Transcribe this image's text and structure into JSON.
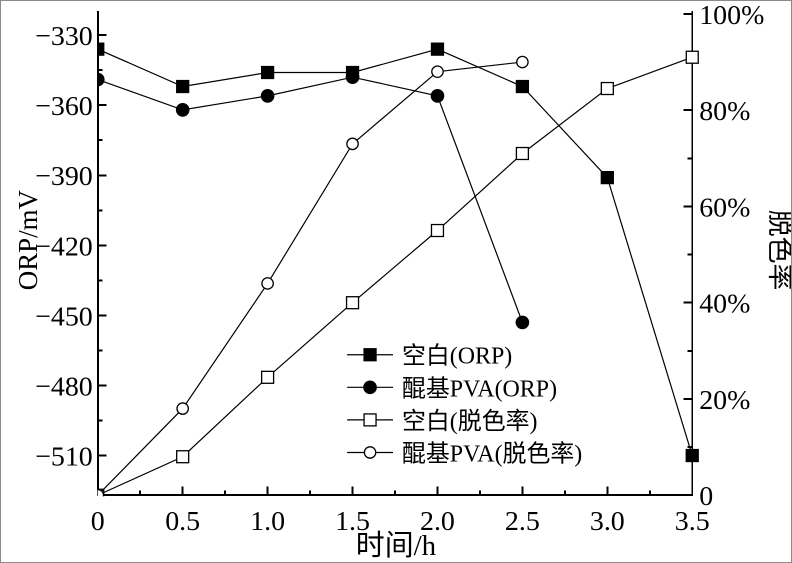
{
  "figure": {
    "background": "#ffffff",
    "foreground": "#000000"
  },
  "chart_data": {
    "type": "line",
    "dual_axis": true,
    "title": "",
    "xlabel": "时间/h",
    "ylabel_left": "ORP/mV",
    "ylabel_right": "脱色率",
    "grid": false,
    "legend_position": "inside-lower-center",
    "xlim": [
      0,
      3.5
    ],
    "x_major_ticks": [
      0,
      0.5,
      1.0,
      1.5,
      2.0,
      2.5,
      3.0,
      3.5
    ],
    "x_tick_labels": [
      "0",
      "0.5",
      "1.0",
      "1.5",
      "2.0",
      "2.5",
      "3.0",
      "3.5"
    ],
    "x_minor_ticks": [
      0.25,
      0.75,
      1.25,
      1.75,
      2.25,
      2.75,
      3.25
    ],
    "ylim_left": [
      -527,
      -320.5
    ],
    "y_left_major_ticks": [
      -330,
      -360,
      -390,
      -420,
      -450,
      -480,
      -510
    ],
    "y_left_tick_labels": [
      "−330",
      "−360",
      "−390",
      "−420",
      "−450",
      "−480",
      "−510"
    ],
    "y_left_minor_ticks": [
      -345,
      -375,
      -405,
      -435,
      -465,
      -495,
      -525
    ],
    "ylim_right": [
      0,
      100.2
    ],
    "y_right_major_ticks": [
      0,
      20,
      40,
      60,
      80,
      100
    ],
    "y_right_tick_labels": [
      "0",
      "20%",
      "40%",
      "60%",
      "80%",
      "100%"
    ],
    "y_right_minor_ticks": [
      10,
      30,
      50,
      70,
      90
    ],
    "series": [
      {
        "id": "blank-orp",
        "name": "空白(ORP)",
        "axis": "left",
        "marker": "filled-square",
        "x": [
          0,
          0.5,
          1.0,
          1.5,
          2.0,
          2.5,
          3.0,
          3.5
        ],
        "y": [
          -336,
          -352,
          -346,
          -346,
          -336,
          -352,
          -391,
          -510
        ]
      },
      {
        "id": "quinone-pva-orp",
        "name": "醌基PVA(ORP)",
        "axis": "left",
        "marker": "filled-circle",
        "x": [
          0,
          0.5,
          1.0,
          1.5,
          2.0,
          2.5
        ],
        "y": [
          -349,
          -362,
          -356,
          -348,
          -356,
          -453
        ]
      },
      {
        "id": "blank-decolorization",
        "name": "空白(脱色率)",
        "axis": "right",
        "marker": "open-square",
        "x": [
          0,
          0.5,
          1.0,
          1.5,
          2.0,
          2.5,
          3.0,
          3.5
        ],
        "y": [
          0,
          8,
          24.5,
          40,
          55,
          71,
          84.5,
          91
        ]
      },
      {
        "id": "quinone-pva-decolorization",
        "name": "醌基PVA(脱色率)",
        "axis": "right",
        "marker": "open-circle",
        "x": [
          0,
          0.5,
          1.0,
          1.5,
          2.0,
          2.5
        ],
        "y": [
          0,
          18,
          44,
          73,
          88,
          90
        ]
      }
    ],
    "colors": {
      "line": "#000000",
      "marker_fill_open": "#ffffff"
    }
  }
}
